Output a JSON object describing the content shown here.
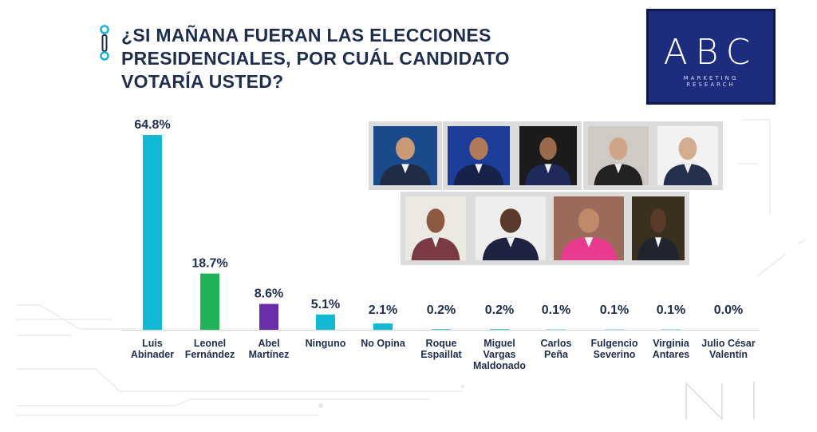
{
  "title": {
    "line1": "¿SI MAÑANA FUERAN LAS ELECCIONES",
    "line2": "PRESIDENCIALES, POR  CUÁL CANDIDATO",
    "line3": "VOTARÍA USTED?"
  },
  "logo": {
    "big": "ABC",
    "small_line1": "MARKETING",
    "small_line2": "RESEARCH"
  },
  "colors": {
    "title": "#1f2d4e",
    "logo_bg": "#1d2c7c",
    "accent_cyan": "#15b8d4",
    "accent_green": "#20b256",
    "accent_purple": "#6a2fa8"
  },
  "photos": [
    {
      "name": "candidate-photo-luis-abinader",
      "bg": "#1a4a8a",
      "suit": "#1e2c46",
      "skin": "#c99a78"
    },
    {
      "name": "candidate-photo-leonel-fernandez",
      "bg": "#1d3d9a",
      "suit": "#17224a",
      "skin": "#b07a58"
    },
    {
      "name": "candidate-photo-abel-martinez",
      "bg": "#1b1b1b",
      "suit": "#1f2a5a",
      "skin": "#9a6a4c"
    },
    {
      "name": "candidate-photo-roque-espaillat",
      "bg": "#cfcac4",
      "suit": "#222222",
      "skin": "#d0a488"
    },
    {
      "name": "candidate-photo-miguel-vargas",
      "bg": "#f2f2f2",
      "suit": "#25304e",
      "skin": "#d4ac90"
    },
    {
      "name": "candidate-photo-carlos-pena",
      "bg": "#ece8e2",
      "suit": "#7a3a44",
      "skin": "#8c5a40"
    },
    {
      "name": "candidate-photo-fulgencio-severino",
      "bg": "#eeeeee",
      "suit": "#1d2340",
      "skin": "#5a3a2a"
    },
    {
      "name": "candidate-photo-virginia-antares",
      "bg": "#9c6a5a",
      "suit": "#e83a8e",
      "skin": "#c08a6a"
    },
    {
      "name": "candidate-photo-julio-cesar-valentin",
      "bg": "#3a3020",
      "suit": "#20242e",
      "skin": "#5a3a28"
    }
  ],
  "chart_data": {
    "type": "bar",
    "title": "¿SI MAÑANA FUERAN LAS ELECCIONES PRESIDENCIALES, POR  CUÁL CANDIDATO VOTARÍA USTED?",
    "categories": [
      [
        "Luis",
        "Abinader"
      ],
      [
        "Leonel",
        "Fernández"
      ],
      [
        "Abel",
        "Martínez"
      ],
      [
        "Ninguno"
      ],
      [
        "No Opina"
      ],
      [
        "Roque",
        "Espaillat"
      ],
      [
        "Miguel",
        "Vargas",
        "Maldonado"
      ],
      [
        "Carlos",
        "Peña"
      ],
      [
        "Fulgencio",
        "Severino"
      ],
      [
        "Virginia",
        "Antares"
      ],
      [
        "Julio César",
        "Valentín"
      ]
    ],
    "values": [
      64.8,
      18.7,
      8.6,
      5.1,
      2.1,
      0.2,
      0.2,
      0.1,
      0.1,
      0.1,
      0.0
    ],
    "value_labels": [
      "64.8%",
      "18.7%",
      "8.6%",
      "5.1%",
      "2.1%",
      "0.2%",
      "0.2%",
      "0.1%",
      "0.1%",
      "0.1%",
      "0.0%"
    ],
    "bar_colors": [
      "#15b8d4",
      "#20b256",
      "#6a2fa8",
      "#15b8d4",
      "#15b8d4",
      "#15b8d4",
      "#15b8d4",
      "#15b8d4",
      "#15b8d4",
      "#15b8d4",
      "#15b8d4"
    ],
    "xlabel": "",
    "ylabel": "",
    "ylim": [
      0,
      64.8
    ],
    "grid": false,
    "legend": "none"
  }
}
